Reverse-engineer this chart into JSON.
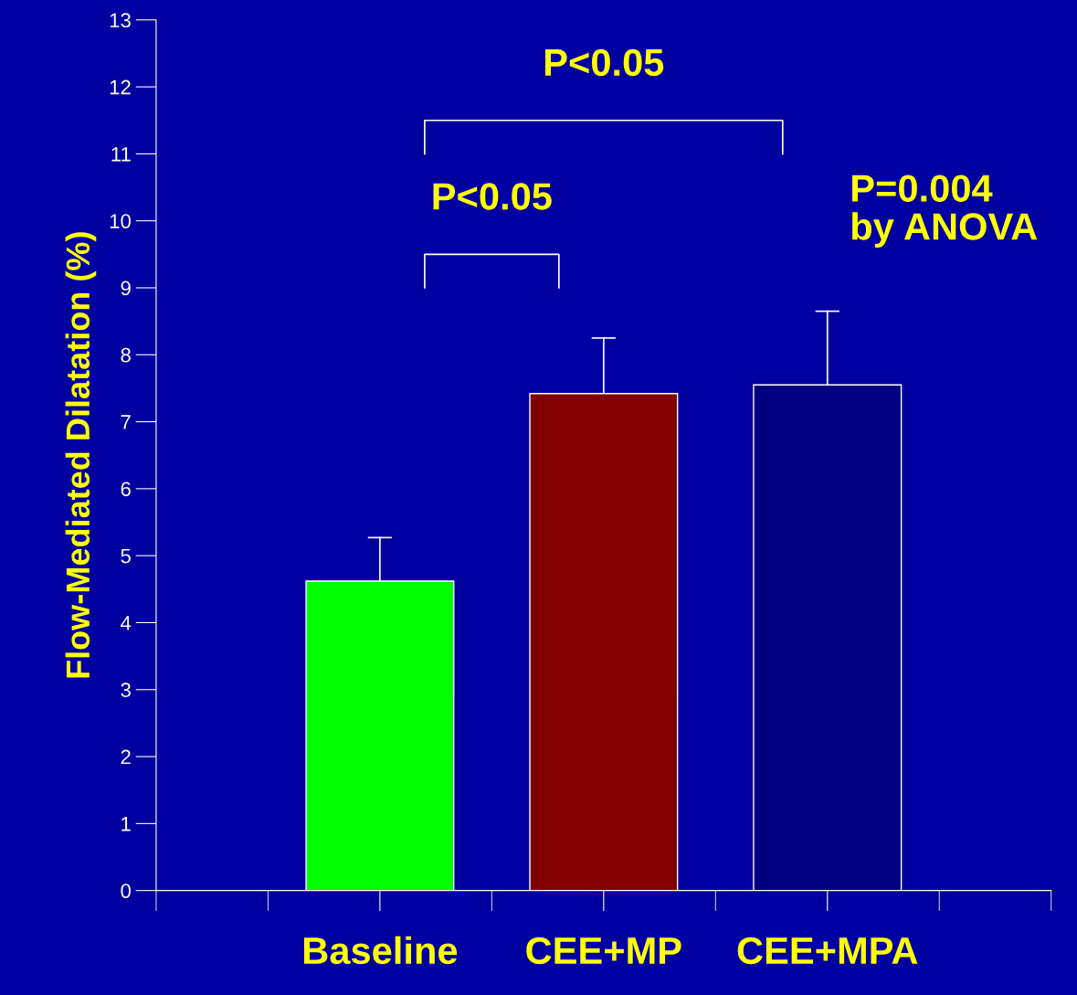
{
  "chart_data": {
    "type": "bar",
    "ylabel": "Flow-Mediated Dilatation (%)",
    "categories": [
      "Baseline",
      "CEE+MP",
      "CEE+MPA"
    ],
    "values": [
      4.62,
      7.42,
      7.55
    ],
    "colors": [
      "#00ff00",
      "#800000",
      "#000080"
    ],
    "errors": [
      [
        4.62,
        5.27
      ],
      [
        7.42,
        8.25
      ],
      [
        7.55,
        8.65
      ]
    ],
    "ylim": [
      0,
      13
    ],
    "yticks": [
      0,
      1,
      2,
      3,
      4,
      5,
      6,
      7,
      8,
      9,
      10,
      11,
      12,
      13
    ],
    "grid": false,
    "annotations": [
      "P<0.05",
      "P<0.05",
      "P=0.004\nby ANOVA"
    ]
  }
}
